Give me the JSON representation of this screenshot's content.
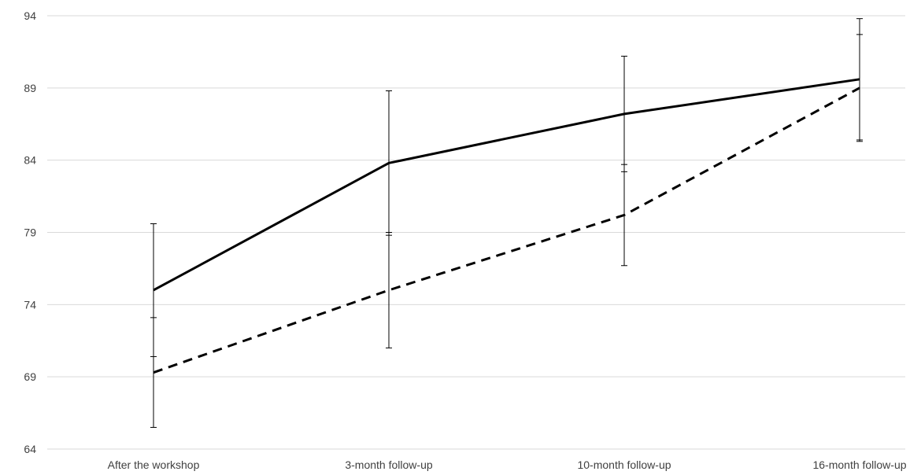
{
  "chart_data": {
    "type": "line",
    "title": "",
    "xlabel": "",
    "ylabel": "",
    "categories": [
      "After the workshop",
      "3-month follow-up",
      "10-month follow-up",
      "16-month follow-up"
    ],
    "ylim": [
      64,
      94
    ],
    "yticks": [
      "64",
      "69",
      "74",
      "79",
      "84",
      "89",
      "94"
    ],
    "grid": "horizontal",
    "legend": "none",
    "series": [
      {
        "style": "solid",
        "color": "#000000",
        "values": [
          75.0,
          83.8,
          87.2,
          89.6
        ],
        "error": [
          4.6,
          5.0,
          4.0,
          4.2
        ]
      },
      {
        "style": "dashed",
        "color": "#000000",
        "values": [
          69.3,
          75.0,
          80.2,
          89.0
        ],
        "error": [
          3.8,
          4.0,
          3.5,
          3.7
        ]
      }
    ]
  }
}
